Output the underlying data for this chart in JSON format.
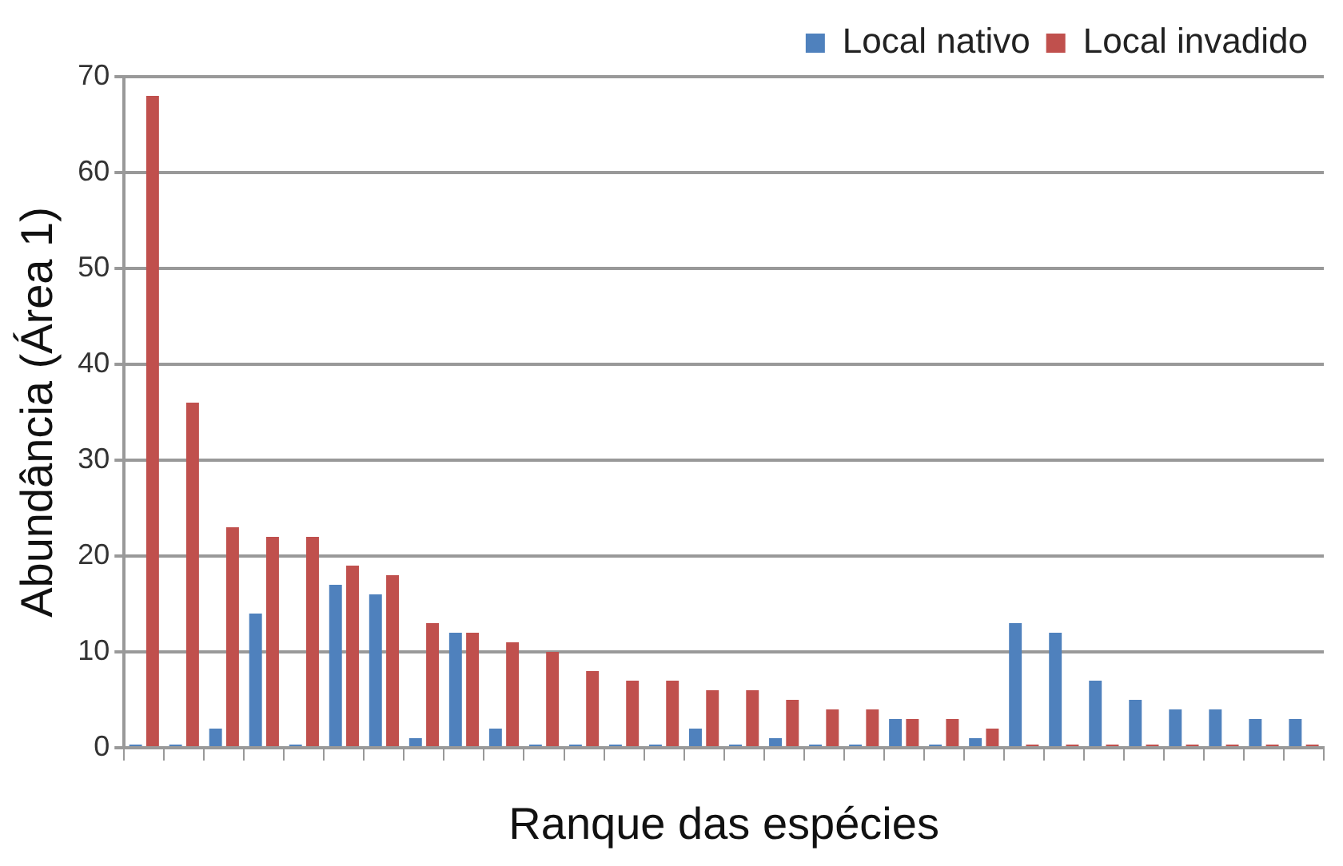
{
  "chart_data": {
    "type": "bar",
    "xlabel": "Ranque das espécies",
    "ylabel": "Abundância (Área 1)",
    "categories": [
      null,
      null,
      null,
      null,
      null,
      null,
      null,
      null,
      null,
      null,
      null,
      null,
      null,
      null,
      null,
      null,
      null,
      null,
      null,
      null,
      null,
      null,
      null,
      null,
      null,
      null,
      null,
      null,
      null,
      null
    ],
    "series": [
      {
        "name": "Local nativo",
        "color": "#4f81bd",
        "values": [
          0,
          0,
          2,
          14,
          0,
          17,
          16,
          1,
          12,
          2,
          0,
          0,
          0,
          0,
          2,
          0,
          1,
          0,
          0,
          3,
          0,
          1,
          13,
          12,
          7,
          5,
          4,
          4,
          3,
          3
        ]
      },
      {
        "name": "Local invadido",
        "color": "#c0504d",
        "values": [
          68,
          36,
          23,
          22,
          22,
          19,
          18,
          13,
          12,
          11,
          10,
          8,
          7,
          7,
          6,
          6,
          5,
          4,
          4,
          3,
          3,
          2,
          0,
          0,
          0,
          0,
          0,
          0,
          0,
          0
        ]
      }
    ],
    "ylim": [
      0,
      70
    ],
    "yticks": [
      0,
      10,
      20,
      30,
      40,
      50,
      60,
      70
    ],
    "grid": "y",
    "legend": "top right"
  }
}
